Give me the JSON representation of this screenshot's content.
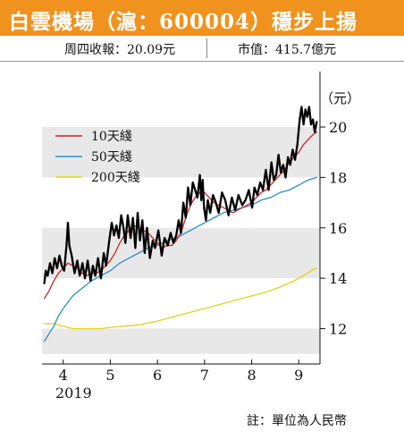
{
  "header": {
    "title": "白雲機場（滬：600004）穩步上揚",
    "close_info": "周四收報：20.09元",
    "market_cap": "市值：415.7億元"
  },
  "footnote": "註：單位為人民幣",
  "chart_data": {
    "type": "line",
    "title": "白雲機場（滬：600004）穩步上揚",
    "unit_label": "（元）",
    "xlim": [
      3.55,
      9.45
    ],
    "ylim": [
      10.6,
      22.2
    ],
    "x_ticks": [
      {
        "x": 4,
        "label": "4"
      },
      {
        "x": 5,
        "label": "5"
      },
      {
        "x": 6,
        "label": "6"
      },
      {
        "x": 7,
        "label": "7"
      },
      {
        "x": 8,
        "label": "8"
      },
      {
        "x": 9,
        "label": "9"
      }
    ],
    "x_year_label": "2019",
    "y_ticks": [
      12,
      14,
      16,
      18,
      20
    ],
    "grid": "alternating horizontal bands",
    "bands": [
      [
        11,
        12
      ],
      [
        14,
        16
      ],
      [
        18,
        20
      ]
    ],
    "legend_position": "top-left",
    "series": [
      {
        "name": "",
        "color": "#000000",
        "x": [
          3.6,
          3.63,
          3.67,
          3.72,
          3.77,
          3.82,
          3.87,
          3.92,
          3.97,
          4.02,
          4.07,
          4.1,
          4.13,
          4.18,
          4.24,
          4.3,
          4.35,
          4.41,
          4.46,
          4.52,
          4.58,
          4.63,
          4.68,
          4.74,
          4.8,
          4.86,
          4.91,
          4.97,
          5.03,
          5.08,
          5.13,
          5.18,
          5.23,
          5.28,
          5.32,
          5.37,
          5.43,
          5.48,
          5.53,
          5.58,
          5.63,
          5.68,
          5.73,
          5.78,
          5.84,
          5.9,
          5.95,
          6.02,
          6.09,
          6.15,
          6.22,
          6.28,
          6.34,
          6.4,
          6.45,
          6.5,
          6.55,
          6.6,
          6.65,
          6.7,
          6.75,
          6.8,
          6.85,
          6.9,
          6.93,
          6.96,
          6.99,
          7.03,
          7.07,
          7.12,
          7.18,
          7.24,
          7.3,
          7.37,
          7.44,
          7.51,
          7.58,
          7.65,
          7.72,
          7.8,
          7.87,
          7.94,
          8.01,
          8.06,
          8.12,
          8.18,
          8.24,
          8.3,
          8.36,
          8.42,
          8.47,
          8.52,
          8.57,
          8.62,
          8.67,
          8.72,
          8.77,
          8.82,
          8.87,
          8.92,
          8.97,
          9.02,
          9.06,
          9.1,
          9.14,
          9.18,
          9.22,
          9.26,
          9.3,
          9.34,
          9.38
        ],
        "y": [
          13.8,
          14.3,
          14.1,
          14.6,
          14.2,
          14.8,
          14.4,
          14.9,
          14.5,
          14.3,
          15.3,
          16.2,
          15.3,
          14.9,
          14.2,
          14.7,
          14.1,
          14.6,
          14.0,
          14.7,
          13.9,
          14.5,
          14.1,
          14.8,
          14.0,
          15.0,
          14.5,
          15.4,
          16.2,
          15.7,
          16.1,
          15.6,
          16.5,
          16.0,
          15.4,
          16.5,
          15.6,
          16.4,
          15.2,
          16.6,
          15.5,
          16.3,
          15.0,
          16.0,
          14.8,
          15.5,
          15.2,
          15.9,
          14.9,
          15.6,
          15.3,
          15.8,
          15.4,
          15.7,
          16.3,
          15.8,
          17.0,
          16.4,
          17.6,
          16.9,
          17.8,
          17.5,
          17.2,
          18.1,
          17.1,
          17.9,
          16.8,
          16.3,
          17.1,
          16.6,
          17.3,
          17.0,
          16.6,
          17.4,
          17.1,
          16.5,
          17.2,
          16.7,
          17.3,
          16.9,
          17.1,
          17.5,
          16.8,
          17.6,
          17.3,
          17.8,
          17.5,
          18.3,
          17.5,
          18.6,
          17.9,
          18.1,
          18.9,
          18.2,
          18.5,
          18.0,
          18.8,
          18.5,
          19.1,
          18.7,
          19.3,
          20.3,
          20.8,
          20.1,
          20.7,
          20.4,
          20.8,
          20.1,
          20.3,
          19.8,
          20.2
        ]
      },
      {
        "name": "10天綫",
        "color": "#d22222",
        "x": [
          3.6,
          3.7,
          3.8,
          3.9,
          4.0,
          4.1,
          4.2,
          4.3,
          4.4,
          4.5,
          4.6,
          4.7,
          4.8,
          4.9,
          5.0,
          5.1,
          5.2,
          5.3,
          5.4,
          5.5,
          5.6,
          5.7,
          5.8,
          5.9,
          6.0,
          6.1,
          6.2,
          6.3,
          6.4,
          6.5,
          6.6,
          6.7,
          6.8,
          6.9,
          7.0,
          7.1,
          7.2,
          7.3,
          7.4,
          7.5,
          7.6,
          7.7,
          7.8,
          7.9,
          8.0,
          8.1,
          8.2,
          8.3,
          8.4,
          8.5,
          8.6,
          8.7,
          8.8,
          8.9,
          9.0,
          9.1,
          9.2,
          9.3,
          9.38
        ],
        "y": [
          13.2,
          13.5,
          13.9,
          14.2,
          14.4,
          14.6,
          14.5,
          14.4,
          14.2,
          14.1,
          14.2,
          14.2,
          14.3,
          14.5,
          14.7,
          15.0,
          15.4,
          15.7,
          15.9,
          16.1,
          16.0,
          15.9,
          15.8,
          15.6,
          15.4,
          15.2,
          15.3,
          15.3,
          15.5,
          15.8,
          16.4,
          16.9,
          17.2,
          17.4,
          17.4,
          17.2,
          17.0,
          16.9,
          16.8,
          16.7,
          16.6,
          16.7,
          16.8,
          16.9,
          17.0,
          17.2,
          17.4,
          17.5,
          17.7,
          17.9,
          18.1,
          18.3,
          18.6,
          18.8,
          19.0,
          19.3,
          19.5,
          19.7,
          19.8
        ]
      },
      {
        "name": "50天綫",
        "color": "#2a8fc8",
        "x": [
          3.6,
          3.7,
          3.8,
          3.9,
          4.0,
          4.2,
          4.4,
          4.6,
          4.8,
          5.0,
          5.2,
          5.4,
          5.6,
          5.8,
          6.0,
          6.2,
          6.4,
          6.6,
          6.8,
          7.0,
          7.2,
          7.4,
          7.6,
          7.8,
          8.0,
          8.2,
          8.4,
          8.6,
          8.8,
          9.0,
          9.2,
          9.38
        ],
        "y": [
          11.5,
          11.8,
          12.1,
          12.5,
          12.8,
          13.3,
          13.6,
          13.9,
          14.1,
          14.3,
          14.6,
          14.8,
          15.0,
          15.2,
          15.3,
          15.5,
          15.6,
          15.8,
          16.0,
          16.2,
          16.4,
          16.6,
          16.7,
          16.8,
          16.9,
          17.1,
          17.2,
          17.4,
          17.5,
          17.7,
          17.9,
          18.0
        ]
      },
      {
        "name": "200天綫",
        "color": "#e2d31a",
        "x": [
          3.6,
          3.8,
          4.0,
          4.2,
          4.5,
          4.8,
          5.0,
          5.3,
          5.6,
          6.0,
          6.3,
          6.6,
          7.0,
          7.3,
          7.6,
          8.0,
          8.3,
          8.6,
          8.9,
          9.1,
          9.3,
          9.38
        ],
        "y": [
          12.2,
          12.2,
          12.1,
          12.0,
          12.0,
          12.0,
          12.05,
          12.1,
          12.15,
          12.3,
          12.45,
          12.6,
          12.8,
          12.95,
          13.1,
          13.3,
          13.45,
          13.65,
          13.9,
          14.1,
          14.35,
          14.4
        ]
      }
    ]
  }
}
